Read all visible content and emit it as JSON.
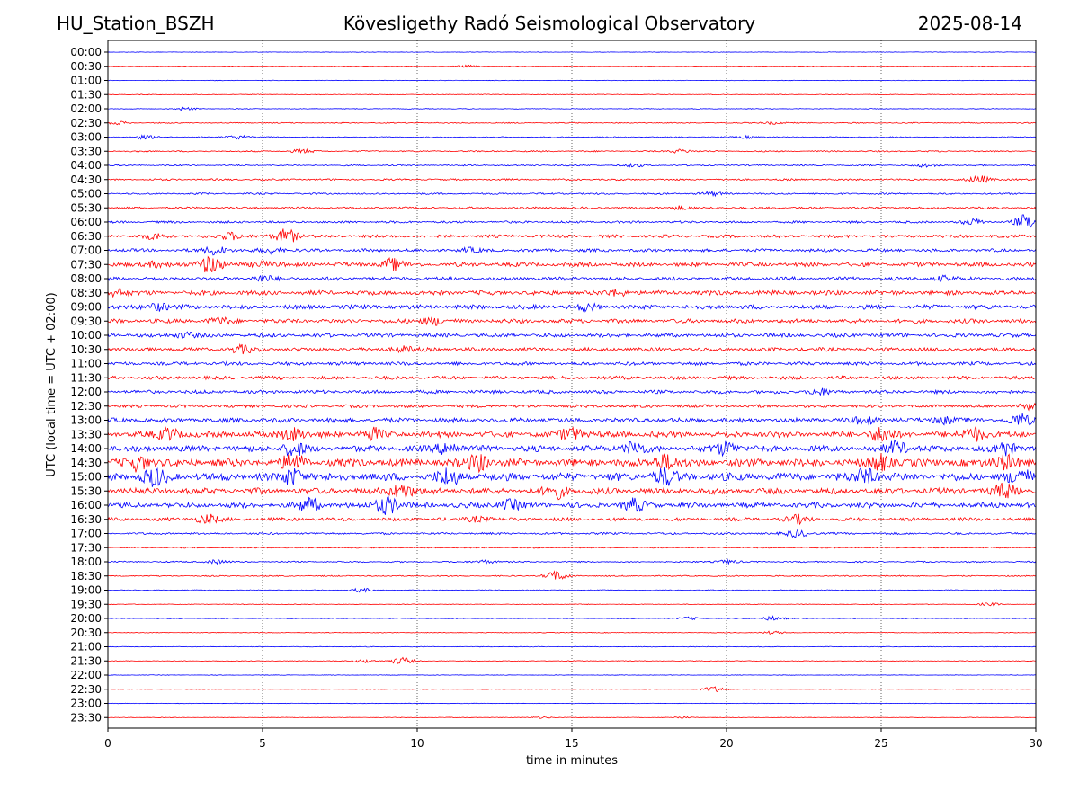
{
  "header": {
    "station": "HU_Station_BSZH",
    "observatory": "Kövesligethy Radó Seismological Observatory",
    "date": "2025-08-14"
  },
  "chart_data": {
    "type": "line",
    "title": "Kövesligethy Radó Seismological Observatory",
    "xlabel": "time in minutes",
    "ylabel": "UTC (local time = UTC + 02:00)",
    "xlim": [
      0,
      30
    ],
    "x_ticks": [
      "0",
      "5",
      "10",
      "15",
      "20",
      "25",
      "30"
    ],
    "grid": "vertical dotted",
    "colors": [
      "#0000ff",
      "#ff0000"
    ],
    "rows": [
      {
        "label": "00:00",
        "noise": 0.3
      },
      {
        "label": "00:30",
        "noise": 0.3,
        "events": [
          [
            11.6,
            1.2
          ]
        ]
      },
      {
        "label": "01:00",
        "noise": 0.3
      },
      {
        "label": "01:30",
        "noise": 0.4
      },
      {
        "label": "02:00",
        "noise": 0.4,
        "events": [
          [
            2.5,
            1.5
          ]
        ]
      },
      {
        "label": "02:30",
        "noise": 0.6,
        "events": [
          [
            0.3,
            1.5
          ],
          [
            21.5,
            1.5
          ]
        ]
      },
      {
        "label": "03:00",
        "noise": 0.6,
        "events": [
          [
            1.2,
            2.0
          ],
          [
            4.2,
            2.0
          ],
          [
            20.7,
            1.5
          ]
        ]
      },
      {
        "label": "03:30",
        "noise": 0.8,
        "events": [
          [
            6.3,
            2.0
          ],
          [
            18.5,
            2.0
          ]
        ]
      },
      {
        "label": "04:00",
        "noise": 0.8,
        "events": [
          [
            17.0,
            1.5
          ],
          [
            26.5,
            2.0
          ]
        ]
      },
      {
        "label": "04:30",
        "noise": 1.0,
        "events": [
          [
            28.2,
            4.0
          ]
        ]
      },
      {
        "label": "05:00",
        "noise": 1.0,
        "events": [
          [
            19.5,
            2.0
          ]
        ]
      },
      {
        "label": "05:30",
        "noise": 1.2,
        "events": [
          [
            18.5,
            2.0
          ]
        ]
      },
      {
        "label": "06:00",
        "noise": 1.3,
        "events": [
          [
            29.7,
            8.0
          ],
          [
            28.0,
            3.0
          ]
        ]
      },
      {
        "label": "06:30",
        "noise": 1.8,
        "events": [
          [
            5.8,
            8.0
          ],
          [
            4.0,
            4.0
          ],
          [
            1.5,
            3.0
          ]
        ]
      },
      {
        "label": "07:00",
        "noise": 1.8,
        "events": [
          [
            3.5,
            5.0
          ],
          [
            5.3,
            3.0
          ],
          [
            11.7,
            2.0
          ]
        ]
      },
      {
        "label": "07:30",
        "noise": 2.4,
        "events": [
          [
            3.3,
            10.0
          ],
          [
            9.2,
            6.0
          ],
          [
            1.5,
            3.0
          ],
          [
            5.0,
            3.0
          ]
        ]
      },
      {
        "label": "08:00",
        "noise": 2.0,
        "events": [
          [
            5.0,
            3.0
          ],
          [
            27.0,
            2.5
          ]
        ]
      },
      {
        "label": "08:30",
        "noise": 2.6,
        "events": [
          [
            0.3,
            4.0
          ],
          [
            16.5,
            3.0
          ]
        ]
      },
      {
        "label": "09:00",
        "noise": 2.6,
        "events": [
          [
            1.6,
            4.0
          ],
          [
            15.5,
            3.0
          ]
        ]
      },
      {
        "label": "09:30",
        "noise": 2.4,
        "events": [
          [
            10.5,
            4.0
          ],
          [
            3.6,
            3.0
          ]
        ]
      },
      {
        "label": "10:00",
        "noise": 2.2,
        "events": [
          [
            2.5,
            3.0
          ]
        ]
      },
      {
        "label": "10:30",
        "noise": 2.2,
        "events": [
          [
            4.3,
            4.0
          ],
          [
            9.5,
            3.0
          ]
        ]
      },
      {
        "label": "11:00",
        "noise": 2.0
      },
      {
        "label": "11:30",
        "noise": 2.0
      },
      {
        "label": "12:00",
        "noise": 2.0,
        "events": [
          [
            23.0,
            3.0
          ]
        ]
      },
      {
        "label": "12:30",
        "noise": 1.8,
        "events": [
          [
            29.8,
            3.0
          ]
        ]
      },
      {
        "label": "13:00",
        "noise": 2.6,
        "events": [
          [
            29.5,
            6.0
          ],
          [
            24.5,
            4.0
          ],
          [
            27.0,
            4.0
          ]
        ]
      },
      {
        "label": "13:30",
        "noise": 3.5,
        "events": [
          [
            2.0,
            6.0
          ],
          [
            6.0,
            7.0
          ],
          [
            8.5,
            6.0
          ],
          [
            15.0,
            7.0
          ],
          [
            25.0,
            8.0
          ],
          [
            28.0,
            8.0
          ]
        ]
      },
      {
        "label": "14:00",
        "noise": 3.5,
        "events": [
          [
            6.0,
            7.0
          ],
          [
            11.0,
            7.0
          ],
          [
            17.0,
            7.0
          ],
          [
            20.0,
            7.0
          ],
          [
            25.5,
            7.0
          ],
          [
            29.0,
            7.0
          ]
        ]
      },
      {
        "label": "14:30",
        "noise": 4.5,
        "events": [
          [
            1.0,
            8.0
          ],
          [
            6.0,
            8.0
          ],
          [
            12.0,
            8.0
          ],
          [
            18.0,
            8.0
          ],
          [
            25.0,
            8.0
          ],
          [
            29.0,
            8.0
          ]
        ]
      },
      {
        "label": "15:00",
        "noise": 4.5,
        "events": [
          [
            1.5,
            8.0
          ],
          [
            6.0,
            8.0
          ],
          [
            11.0,
            8.0
          ],
          [
            18.0,
            8.0
          ],
          [
            24.5,
            8.0
          ],
          [
            29.5,
            8.0
          ]
        ]
      },
      {
        "label": "15:30",
        "noise": 3.5,
        "events": [
          [
            9.5,
            8.0
          ],
          [
            14.5,
            7.0
          ],
          [
            29.0,
            7.0
          ]
        ]
      },
      {
        "label": "16:00",
        "noise": 3.0,
        "events": [
          [
            6.5,
            7.0
          ],
          [
            9.0,
            10.0
          ],
          [
            13.0,
            5.0
          ],
          [
            17.0,
            6.0
          ]
        ]
      },
      {
        "label": "16:30",
        "noise": 2.0,
        "events": [
          [
            3.2,
            5.0
          ],
          [
            22.3,
            4.0
          ],
          [
            12.0,
            3.0
          ]
        ]
      },
      {
        "label": "17:00",
        "noise": 1.2,
        "events": [
          [
            22.3,
            4.0
          ]
        ]
      },
      {
        "label": "17:30",
        "noise": 0.7
      },
      {
        "label": "18:00",
        "noise": 0.8,
        "events": [
          [
            3.5,
            2.0
          ],
          [
            12.2,
            2.0
          ],
          [
            20.0,
            2.0
          ]
        ]
      },
      {
        "label": "18:30",
        "noise": 0.7,
        "events": [
          [
            14.5,
            5.0
          ]
        ]
      },
      {
        "label": "19:00",
        "noise": 0.5,
        "events": [
          [
            8.2,
            2.0
          ]
        ]
      },
      {
        "label": "19:30",
        "noise": 0.4,
        "events": [
          [
            28.5,
            1.5
          ]
        ]
      },
      {
        "label": "20:00",
        "noise": 0.4,
        "events": [
          [
            21.5,
            2.5
          ],
          [
            18.8,
            1.5
          ]
        ]
      },
      {
        "label": "20:30",
        "noise": 0.4,
        "events": [
          [
            21.5,
            1.5
          ]
        ]
      },
      {
        "label": "21:00",
        "noise": 0.4
      },
      {
        "label": "21:30",
        "noise": 0.4,
        "events": [
          [
            9.5,
            4.0
          ],
          [
            8.3,
            2.0
          ]
        ]
      },
      {
        "label": "22:00",
        "noise": 0.3
      },
      {
        "label": "22:30",
        "noise": 0.3,
        "events": [
          [
            19.6,
            3.0
          ]
        ]
      },
      {
        "label": "23:00",
        "noise": 0.3
      },
      {
        "label": "23:30",
        "noise": 0.3,
        "events": [
          [
            14.0,
            1.0
          ],
          [
            18.5,
            1.0
          ]
        ]
      }
    ]
  }
}
